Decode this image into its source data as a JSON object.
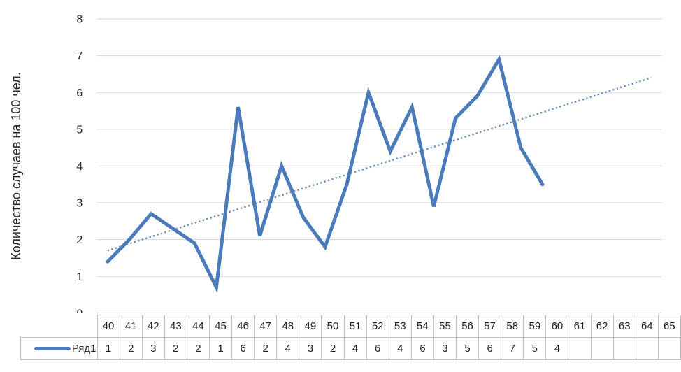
{
  "chart_data": {
    "type": "line",
    "title": "",
    "xlabel": "",
    "ylabel": "Количество случаев на 100 чел.",
    "ylim": [
      0,
      8
    ],
    "yticks": [
      0,
      1,
      2,
      3,
      4,
      5,
      6,
      7,
      8
    ],
    "grid": true,
    "legend_position": "bottom-table",
    "categories": [
      "40",
      "41",
      "42",
      "43",
      "44",
      "45",
      "46",
      "47",
      "48",
      "49",
      "50",
      "51",
      "52",
      "53",
      "54",
      "55",
      "56",
      "57",
      "58",
      "59",
      "60",
      "61",
      "62",
      "63",
      "64",
      "65"
    ],
    "series": [
      {
        "name": "Ряд1",
        "values": [
          1.4,
          2.0,
          2.7,
          2.3,
          1.9,
          0.7,
          5.6,
          2.1,
          4.0,
          2.6,
          1.8,
          3.5,
          6.0,
          4.4,
          5.6,
          2.9,
          5.3,
          5.9,
          6.9,
          4.5,
          3.5
        ]
      }
    ],
    "trendline": {
      "type": "linear",
      "style": "dotted",
      "x_start": "40",
      "y_start": 1.7,
      "x_end": "65",
      "y_end": 6.4
    },
    "data_table": {
      "legend_label": "Ряд1",
      "values": [
        "1",
        "2",
        "3",
        "2",
        "2",
        "1",
        "6",
        "2",
        "4",
        "3",
        "2",
        "4",
        "6",
        "4",
        "6",
        "3",
        "5",
        "6",
        "7",
        "5",
        "4",
        "",
        "",
        "",
        "",
        ""
      ]
    },
    "colors": {
      "series": "#4b7bba",
      "trendline": "#6a8cbb",
      "gridline": "#d6d6d6",
      "axis_line": "#c4c4c4",
      "tick_text": "#262626"
    }
  }
}
